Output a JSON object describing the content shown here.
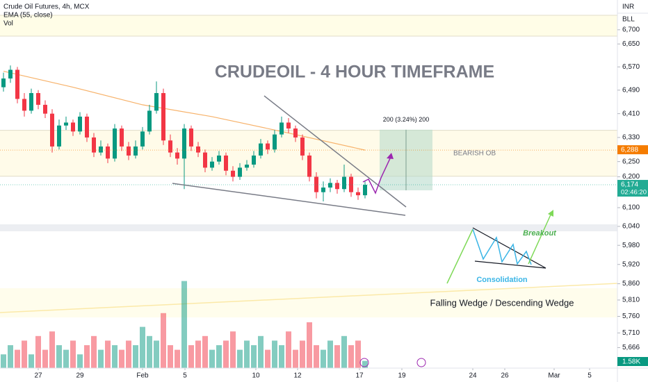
{
  "chart_data": {
    "type": "candlestick",
    "title": "CRUDEOIL - 4 HOUR TIMEFRAME",
    "symbol": "Crude Oil Futures, 4h, MCX",
    "currency": "INR",
    "unit": "BLL",
    "log": true,
    "ylim": [
      5605,
      6806
    ],
    "yticks": [
      {
        "value": 6700,
        "label": "6,700"
      },
      {
        "value": 6650,
        "label": "6,650"
      },
      {
        "value": 6570,
        "label": "6,570"
      },
      {
        "value": 6490,
        "label": "6,490"
      },
      {
        "value": 6410,
        "label": "6,410"
      },
      {
        "value": 6330,
        "label": "6,330"
      },
      {
        "value": 6250,
        "label": "6,250"
      },
      {
        "value": 6200,
        "label": "6,200"
      },
      {
        "value": 6100,
        "label": "6,100"
      },
      {
        "value": 6040,
        "label": "6,040"
      },
      {
        "value": 5980,
        "label": "5,980"
      },
      {
        "value": 5920,
        "label": "5,920"
      },
      {
        "value": 5860,
        "label": "5,860"
      },
      {
        "value": 5810,
        "label": "5,810"
      },
      {
        "value": 5760,
        "label": "5,760"
      },
      {
        "value": 5710,
        "label": "5,710"
      },
      {
        "value": 5666,
        "label": "5,666"
      }
    ],
    "xlim": [
      -0.5,
      87.5
    ],
    "xticks": [
      {
        "value": 5,
        "label": "27"
      },
      {
        "value": 11,
        "label": "29"
      },
      {
        "value": 20,
        "label": "Feb"
      },
      {
        "value": 26.1,
        "label": "5"
      },
      {
        "value": 36.3,
        "label": "10"
      },
      {
        "value": 42.3,
        "label": "12"
      },
      {
        "value": 51.2,
        "label": "17"
      },
      {
        "value": 57.3,
        "label": "19"
      },
      {
        "value": 67.5,
        "label": "24"
      },
      {
        "value": 72.1,
        "label": "26"
      },
      {
        "value": 79.2,
        "label": "Mar"
      },
      {
        "value": 84.3,
        "label": "5"
      }
    ],
    "up_color": "#089981",
    "down_color": "#f23645",
    "open": [
      6500,
      6530,
      6560,
      6460,
      6420,
      6480,
      6440,
      6410,
      6300,
      6370,
      6380,
      6350,
      6400,
      6330,
      6280,
      6300,
      6260,
      6360,
      6300,
      6270,
      6300,
      6350,
      6420,
      6480,
      6320,
      6280,
      6260,
      6360,
      6300,
      6280,
      6230,
      6250,
      6270,
      6220,
      6200,
      6230,
      6240,
      6270,
      6310,
      6290,
      6340,
      6380,
      6360,
      6330,
      6270,
      6200,
      6150,
      6165,
      6180,
      6160,
      6200,
      6150,
      6140
    ],
    "high": [
      6550,
      6575,
      6570,
      6480,
      6495,
      6490,
      6455,
      6425,
      6390,
      6400,
      6390,
      6415,
      6410,
      6345,
      6320,
      6310,
      6375,
      6370,
      6315,
      6320,
      6365,
      6440,
      6520,
      6495,
      6340,
      6295,
      6375,
      6370,
      6315,
      6290,
      6265,
      6285,
      6280,
      6235,
      6245,
      6255,
      6285,
      6325,
      6320,
      6355,
      6400,
      6395,
      6370,
      6340,
      6280,
      6215,
      6185,
      6195,
      6190,
      6240,
      6210,
      6165,
      6185
    ],
    "low": [
      6485,
      6515,
      6445,
      6400,
      6410,
      6425,
      6395,
      6280,
      6290,
      6355,
      6335,
      6340,
      6315,
      6265,
      6270,
      6245,
      6250,
      6285,
      6255,
      6260,
      6290,
      6340,
      6410,
      6305,
      6265,
      6240,
      6160,
      6285,
      6265,
      6215,
      6220,
      6240,
      6205,
      6185,
      6190,
      6220,
      6230,
      6260,
      6275,
      6280,
      6330,
      6345,
      6315,
      6255,
      6185,
      6130,
      6120,
      6150,
      6145,
      6150,
      6135,
      6125,
      6130
    ],
    "close": [
      6530,
      6560,
      6460,
      6420,
      6480,
      6440,
      6410,
      6300,
      6370,
      6380,
      6350,
      6400,
      6330,
      6280,
      6300,
      6260,
      6360,
      6300,
      6270,
      6300,
      6350,
      6420,
      6480,
      6320,
      6280,
      6260,
      6360,
      6300,
      6280,
      6230,
      6250,
      6270,
      6220,
      6200,
      6230,
      6240,
      6270,
      6310,
      6290,
      6340,
      6380,
      6360,
      6330,
      6270,
      6200,
      6150,
      6165,
      6180,
      6160,
      6200,
      6150,
      6140,
      6174
    ],
    "ema": {
      "name": "EMA (55, close)",
      "color": "#f7b26a",
      "x": [
        0,
        10,
        20,
        30,
        40,
        52
      ],
      "values": [
        6555,
        6500,
        6440,
        6400,
        6350,
        6288
      ]
    },
    "volume": {
      "name": "Vol",
      "vlim": [
        0,
        20
      ],
      "values": [
        3,
        5,
        4,
        6,
        3,
        7,
        4,
        8,
        5,
        4,
        6,
        3,
        5,
        7,
        4,
        6,
        5,
        4,
        6,
        5,
        9,
        7,
        6,
        12,
        5,
        4,
        19,
        5,
        6,
        7,
        4,
        5,
        6,
        8,
        4,
        6,
        5,
        7,
        4,
        6,
        5,
        8,
        4,
        6,
        10,
        5,
        4,
        6,
        5,
        7,
        5,
        6,
        1.58
      ],
      "last_label": "1.58K"
    },
    "price_labels": [
      {
        "value": 6288,
        "label": "6,288",
        "color": "#f57c00"
      },
      {
        "value": 6174,
        "label": "6,174",
        "color": "#22ab94",
        "countdown": "02:46:20"
      }
    ],
    "measure": {
      "from": 6156,
      "to": 6356,
      "label": "200 (3.24%) 200"
    },
    "bearish_ob": {
      "from": 6202,
      "to": 6354,
      "label": "BEARISH OB"
    },
    "inset": {
      "breakout": "Breakout",
      "consolidation": "Consolidation",
      "caption": "Falling Wedge / Descending Wedge"
    }
  }
}
